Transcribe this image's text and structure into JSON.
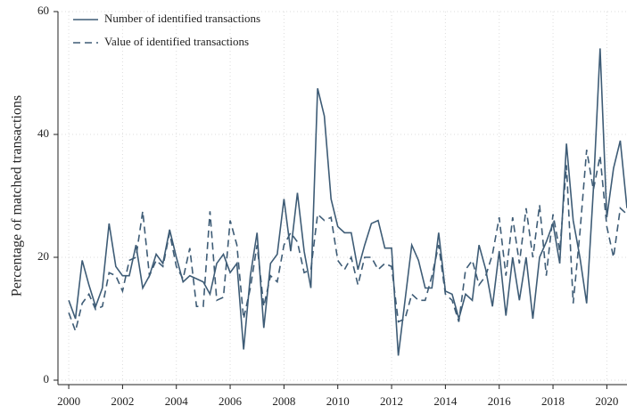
{
  "chart_data": {
    "type": "line",
    "y_label": "Percentage of matched transactions",
    "x": [
      2000,
      2000.25,
      2000.5,
      2000.75,
      2001,
      2001.25,
      2001.5,
      2001.75,
      2002,
      2002.25,
      2002.5,
      2002.75,
      2003,
      2003.25,
      2003.5,
      2003.75,
      2004,
      2004.25,
      2004.5,
      2004.75,
      2005,
      2005.25,
      2005.5,
      2005.75,
      2006,
      2006.25,
      2006.5,
      2006.75,
      2007,
      2007.25,
      2007.5,
      2007.75,
      2008,
      2008.25,
      2008.5,
      2008.75,
      2009,
      2009.25,
      2009.5,
      2009.75,
      2010,
      2010.25,
      2010.5,
      2010.75,
      2011,
      2011.25,
      2011.5,
      2011.75,
      2012,
      2012.25,
      2012.5,
      2012.75,
      2013,
      2013.25,
      2013.5,
      2013.75,
      2014,
      2014.25,
      2014.5,
      2014.75,
      2015,
      2015.25,
      2015.5,
      2015.75,
      2016,
      2016.25,
      2016.5,
      2016.75,
      2017,
      2017.25,
      2017.5,
      2017.75,
      2018,
      2018.25,
      2018.5,
      2018.75,
      2019,
      2019.25,
      2019.5,
      2019.75,
      2020,
      2020.25,
      2020.5,
      2020.75
    ],
    "series": [
      {
        "name": "Number of identified transactions",
        "color": "#3e5c76",
        "dash": false,
        "values": [
          13,
          10,
          19.5,
          15.5,
          12,
          15,
          25.5,
          18.5,
          17,
          17,
          22,
          15,
          17,
          20.5,
          19,
          24.5,
          20,
          16,
          17,
          16.5,
          16,
          14,
          19,
          20.5,
          17.5,
          19,
          5,
          17,
          24,
          8.5,
          19,
          20.5,
          29.5,
          21,
          30.5,
          21,
          15,
          47.5,
          43,
          29.5,
          25,
          24,
          24,
          18,
          22,
          25.5,
          26,
          21.5,
          21.5,
          4,
          13,
          22,
          19.5,
          15,
          15,
          24,
          14.5,
          14,
          10,
          14,
          13,
          22,
          18,
          12,
          21,
          10.5,
          20,
          13,
          20,
          10,
          20,
          22.5,
          25.5,
          19,
          38.5,
          26,
          20,
          12.5,
          31,
          54,
          26.5,
          34.5,
          39,
          28
        ]
      },
      {
        "name": "Value of identified transactions",
        "color": "#3e5c76",
        "dash": true,
        "values": [
          11,
          8,
          12.5,
          14,
          11.5,
          12,
          17.5,
          17,
          14.5,
          19.5,
          20,
          27.5,
          17,
          19.5,
          18.5,
          24,
          18.5,
          16.5,
          21.5,
          12,
          12,
          27.5,
          13,
          13.5,
          26,
          22,
          10,
          15,
          22,
          12,
          17,
          16,
          22,
          24,
          22.5,
          17.5,
          18,
          27,
          26,
          26.5,
          19.5,
          18,
          20,
          15.5,
          20,
          20,
          18,
          19,
          18.5,
          9.5,
          10,
          14,
          13,
          13,
          17,
          22,
          14,
          13,
          9.5,
          18,
          19.5,
          15.5,
          17,
          20.5,
          26.5,
          17,
          26.5,
          19,
          28,
          20,
          28.5,
          17,
          27,
          21,
          35,
          12.5,
          24,
          37.5,
          31,
          36.5,
          25,
          20,
          28,
          27
        ]
      }
    ],
    "xlim": [
      1999.6,
      2020.75
    ],
    "xticks": [
      2000,
      2002,
      2004,
      2006,
      2008,
      2010,
      2012,
      2014,
      2016,
      2018,
      2020
    ],
    "ylim": [
      0,
      60
    ],
    "yticks": [
      0,
      20,
      40,
      60
    ],
    "grid": true,
    "legend": "upper-left"
  }
}
